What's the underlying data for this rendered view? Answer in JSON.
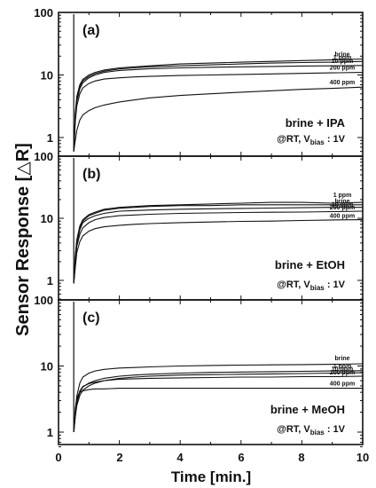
{
  "figure": {
    "ylabel": "Sensor Response [△R]",
    "xlabel": "Time [min.]",
    "x_ticks": [
      "0",
      "2",
      "4",
      "6",
      "8",
      "10"
    ],
    "y_ticks": [
      "1",
      "10",
      "100"
    ]
  },
  "chart_data": [
    {
      "type": "line",
      "panel": "(a)",
      "annotation_line1": "brine + IPA",
      "annotation_prefix": "@RT, V",
      "annotation_sub": "bias",
      "annotation_suffix": " : 1V",
      "xlim": [
        0,
        10
      ],
      "ylim": [
        0.5,
        100
      ],
      "y_scale": "log",
      "x": [
        0.5,
        0.55,
        0.6,
        0.7,
        0.8,
        1.0,
        1.2,
        1.5,
        2,
        2.5,
        3,
        4,
        5,
        6,
        7,
        8,
        9,
        10
      ],
      "series": [
        {
          "name": "brine",
          "values": [
            0.6,
            2.5,
            4.5,
            7.0,
            8.5,
            10.0,
            11.0,
            12.0,
            13.0,
            13.5,
            14.0,
            15.0,
            15.5,
            16.0,
            16.5,
            17.0,
            17.5,
            18.0
          ]
        },
        {
          "name": "1 ppm",
          "values": [
            0.6,
            2.3,
            4.2,
            6.5,
            8.0,
            9.5,
            10.5,
            11.5,
            12.5,
            13.0,
            13.5,
            14.0,
            14.5,
            15.0,
            15.5,
            15.8,
            16.0,
            16.5
          ]
        },
        {
          "name": "10 ppm",
          "values": [
            0.6,
            2.0,
            3.8,
            6.0,
            7.5,
            9.0,
            10.0,
            11.0,
            11.8,
            12.2,
            12.6,
            13.0,
            13.3,
            13.5,
            13.7,
            13.9,
            14.0,
            14.2
          ]
        },
        {
          "name": "200 ppm",
          "values": [
            0.6,
            1.8,
            3.2,
            5.0,
            6.2,
            7.3,
            8.0,
            8.6,
            9.0,
            9.3,
            9.5,
            9.8,
            10.0,
            10.2,
            10.4,
            10.6,
            10.8,
            11.0
          ]
        },
        {
          "name": "400 ppm",
          "values": [
            0.6,
            0.9,
            1.3,
            1.9,
            2.3,
            2.7,
            3.0,
            3.3,
            3.7,
            4.0,
            4.3,
            4.7,
            5.0,
            5.3,
            5.6,
            5.9,
            6.1,
            6.4
          ]
        }
      ]
    },
    {
      "type": "line",
      "panel": "(b)",
      "annotation_line1": "brine + EtOH",
      "annotation_prefix": "@RT, V",
      "annotation_sub": "bias",
      "annotation_suffix": " : 1V",
      "xlim": [
        0,
        10
      ],
      "ylim": [
        0.5,
        100
      ],
      "y_scale": "log",
      "x": [
        0.5,
        0.55,
        0.6,
        0.7,
        0.8,
        1.0,
        1.2,
        1.5,
        2,
        2.5,
        3,
        4,
        5,
        6,
        7,
        8,
        9,
        10
      ],
      "series": [
        {
          "name": "1 ppm",
          "values": [
            0.9,
            2.5,
            4.5,
            7.5,
            9.5,
            11.5,
            12.5,
            14.0,
            15.0,
            15.5,
            16.0,
            16.5,
            17.0,
            17.5,
            18.0,
            18.0,
            17.5,
            18.0
          ]
        },
        {
          "name": "brine",
          "values": [
            0.9,
            2.4,
            4.3,
            7.0,
            9.0,
            11.0,
            12.0,
            13.5,
            14.5,
            15.0,
            15.5,
            16.0,
            16.0,
            16.5,
            16.5,
            16.5,
            16.5,
            16.5
          ]
        },
        {
          "name": "10 ppm",
          "values": [
            0.9,
            2.2,
            4.0,
            6.5,
            8.5,
            10.0,
            11.0,
            12.0,
            13.0,
            13.3,
            13.6,
            14.0,
            14.2,
            14.4,
            14.6,
            14.8,
            15.0,
            15.0
          ]
        },
        {
          "name": "200 ppm",
          "values": [
            0.9,
            2.0,
            3.5,
            5.5,
            7.0,
            8.5,
            9.5,
            10.3,
            11.0,
            11.3,
            11.6,
            12.0,
            12.2,
            12.4,
            12.5,
            12.6,
            12.8,
            13.0
          ]
        },
        {
          "name": "400 ppm",
          "values": [
            0.9,
            1.6,
            2.8,
            4.2,
            5.2,
            6.2,
            6.8,
            7.3,
            7.7,
            8.0,
            8.2,
            8.5,
            8.7,
            8.9,
            9.0,
            9.2,
            9.4,
            9.5
          ]
        }
      ]
    },
    {
      "type": "line",
      "panel": "(c)",
      "annotation_line1": "brine + MeOH",
      "annotation_prefix": "@RT, V",
      "annotation_sub": "bias",
      "annotation_suffix": " : 1V",
      "xlim": [
        0,
        10
      ],
      "ylim": [
        0.6,
        100
      ],
      "y_scale": "log",
      "x": [
        0.5,
        0.55,
        0.6,
        0.7,
        0.8,
        1.0,
        1.2,
        1.5,
        2,
        2.5,
        3,
        4,
        5,
        6,
        7,
        8,
        9,
        10
      ],
      "series": [
        {
          "name": "brine",
          "values": [
            1.0,
            2.0,
            3.5,
            5.5,
            6.8,
            7.8,
            8.4,
            8.9,
            9.3,
            9.5,
            9.7,
            10.0,
            10.2,
            10.3,
            10.4,
            10.5,
            10.6,
            10.8
          ]
        },
        {
          "name": "1 ppm",
          "values": [
            1.0,
            1.8,
            2.8,
            4.0,
            4.8,
            5.5,
            6.0,
            6.5,
            7.0,
            7.3,
            7.5,
            7.8,
            8.0,
            8.1,
            8.2,
            8.3,
            8.4,
            8.5
          ]
        },
        {
          "name": "10 ppm",
          "values": [
            1.0,
            1.7,
            2.5,
            3.6,
            4.3,
            5.0,
            5.5,
            6.0,
            6.5,
            6.8,
            7.0,
            7.3,
            7.4,
            7.5,
            7.6,
            7.7,
            7.8,
            7.9
          ]
        },
        {
          "name": "200 ppm",
          "values": [
            1.0,
            1.9,
            3.0,
            4.2,
            4.9,
            5.4,
            5.7,
            6.0,
            6.3,
            6.4,
            6.5,
            6.6,
            6.7,
            6.8,
            6.8,
            6.9,
            6.9,
            7.0
          ]
        },
        {
          "name": "400 ppm",
          "values": [
            1.0,
            2.3,
            3.3,
            4.0,
            4.2,
            4.4,
            4.5,
            4.5,
            4.6,
            4.6,
            4.6,
            4.6,
            4.6,
            4.6,
            4.6,
            4.6,
            4.6,
            4.6
          ]
        }
      ]
    }
  ]
}
